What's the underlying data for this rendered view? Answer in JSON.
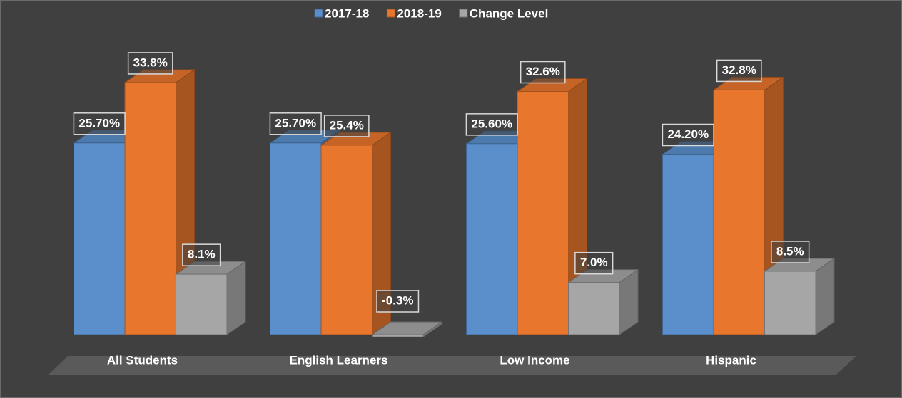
{
  "chart_data": {
    "type": "bar",
    "categories": [
      "All Students",
      "English Learners",
      "Low Income",
      "Hispanic"
    ],
    "series": [
      {
        "name": "2017-18",
        "color": "#5b8fcc",
        "values": [
          25.7,
          25.7,
          25.6,
          24.2
        ],
        "value_labels": [
          "25.70%",
          "25.70%",
          "25.60%",
          "24.20%"
        ]
      },
      {
        "name": "2018-19",
        "color": "#e8762d",
        "values": [
          33.8,
          25.4,
          32.6,
          32.8
        ],
        "value_labels": [
          "33.8%",
          "25.4%",
          "32.6%",
          "32.8%"
        ]
      },
      {
        "name": "Change Level",
        "color": "#a6a6a6",
        "values": [
          8.1,
          -0.3,
          7.0,
          8.5
        ],
        "value_labels": [
          "8.1%",
          "-0.3%",
          "7.0%",
          "8.5%"
        ]
      }
    ],
    "ylim": [
      0,
      40
    ],
    "legend": "top"
  }
}
